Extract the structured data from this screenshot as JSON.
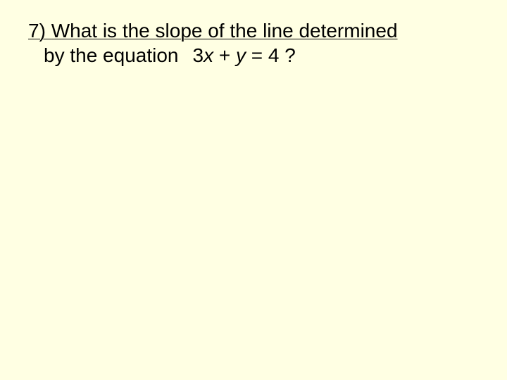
{
  "slide": {
    "background_color": "#ffffe3",
    "text_color": "#000000",
    "font_family": "Arial",
    "font_size_pt": 21,
    "question_number": "7)",
    "line1_prefix": "7) ",
    "line1_text": "What is the slope of the line determined",
    "line2_prefix": "by the equation",
    "eq_coef": "3",
    "eq_var1": "x",
    "eq_plus": " + ",
    "eq_var2": "y",
    "eq_rhs": " = 4 ?"
  }
}
